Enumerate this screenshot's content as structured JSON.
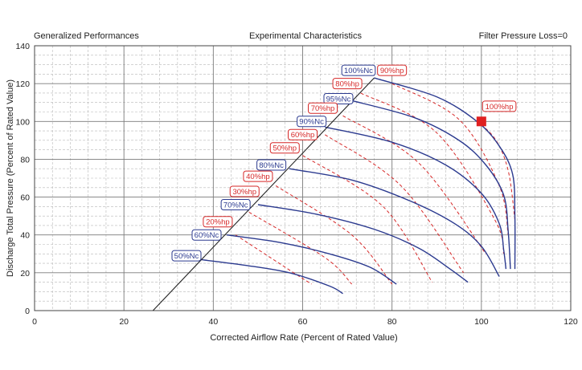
{
  "chart_data": {
    "type": "line",
    "header": {
      "left": "Generalized Performances",
      "center": "Experimental Characteristics",
      "right": "Filter Pressure Loss=0"
    },
    "xlabel": "Corrected Airflow Rate (Percent of Rated Value)",
    "ylabel": "Discharge Total Pressure (Percent of Rated Value)",
    "xlim": [
      0,
      120
    ],
    "ylim": [
      0,
      140
    ],
    "xticks": [
      0,
      20,
      40,
      60,
      80,
      100,
      120
    ],
    "yticks": [
      0,
      20,
      40,
      60,
      80,
      100,
      120,
      140
    ],
    "grid": true,
    "colors": {
      "speed": "#2b3a8f",
      "power": "#d62828",
      "surge": "#222222",
      "marker": "#e02020"
    },
    "surge_line": [
      [
        26.5,
        0
      ],
      [
        76,
        123
      ]
    ],
    "speed_series": [
      {
        "name": "50%Nc",
        "points": [
          [
            37,
            27
          ],
          [
            47,
            24
          ],
          [
            57,
            20
          ],
          [
            66,
            13
          ],
          [
            69,
            9
          ]
        ]
      },
      {
        "name": "60%Nc",
        "points": [
          [
            43,
            40
          ],
          [
            55,
            36
          ],
          [
            66,
            30
          ],
          [
            75,
            23
          ],
          [
            81,
            14
          ]
        ]
      },
      {
        "name": "70%Nc",
        "points": [
          [
            50,
            56
          ],
          [
            63,
            51
          ],
          [
            76,
            43
          ],
          [
            86,
            33
          ],
          [
            93,
            22
          ],
          [
            97,
            15
          ]
        ]
      },
      {
        "name": "80%Nc",
        "points": [
          [
            57,
            75
          ],
          [
            71,
            69
          ],
          [
            84,
            58
          ],
          [
            94,
            46
          ],
          [
            100,
            34
          ],
          [
            104,
            18
          ]
        ]
      },
      {
        "name": "90%Nc",
        "points": [
          [
            65,
            97
          ],
          [
            80,
            89
          ],
          [
            92,
            77
          ],
          [
            100,
            62
          ],
          [
            104,
            46
          ],
          [
            105,
            32
          ],
          [
            105.5,
            22
          ]
        ]
      },
      {
        "name": "95%Nc",
        "points": [
          [
            71,
            111
          ],
          [
            85,
            102
          ],
          [
            95,
            90
          ],
          [
            101,
            77
          ],
          [
            105,
            61
          ],
          [
            106,
            42
          ],
          [
            106.5,
            22
          ]
        ]
      },
      {
        "name": "100%Nc",
        "points": [
          [
            76,
            123
          ],
          [
            90,
            113
          ],
          [
            99,
            100
          ],
          [
            104,
            87
          ],
          [
            107,
            72
          ],
          [
            107.5,
            50
          ],
          [
            107.5,
            22
          ]
        ]
      }
    ],
    "power_series": [
      {
        "name": "20%hp",
        "points": [
          [
            45,
            40
          ],
          [
            58,
            20
          ],
          [
            62,
            14
          ]
        ]
      },
      {
        "name": "30%hp",
        "points": [
          [
            48,
            52
          ],
          [
            65,
            28
          ],
          [
            71,
            14
          ]
        ]
      },
      {
        "name": "40%hp",
        "points": [
          [
            54,
            66
          ],
          [
            71,
            40
          ],
          [
            80,
            14
          ]
        ]
      },
      {
        "name": "50%hp",
        "points": [
          [
            60,
            82
          ],
          [
            78,
            55
          ],
          [
            89,
            15
          ]
        ]
      },
      {
        "name": "60%hp",
        "points": [
          [
            65,
            93
          ],
          [
            82,
            66
          ],
          [
            96,
            20
          ]
        ]
      },
      {
        "name": "70%hp",
        "points": [
          [
            69,
            103
          ],
          [
            86,
            78
          ],
          [
            101,
            30
          ]
        ]
      },
      {
        "name": "80%hp",
        "points": [
          [
            73,
            115
          ],
          [
            90,
            94
          ],
          [
            103,
            48
          ],
          [
            105,
            30
          ]
        ]
      },
      {
        "name": "90%hp",
        "points": [
          [
            80,
            120
          ],
          [
            95,
            101
          ],
          [
            104,
            66
          ],
          [
            106,
            40
          ]
        ]
      },
      {
        "name": "100%hp",
        "points": [
          [
            98,
            102
          ],
          [
            103,
            91
          ],
          [
            106,
            74
          ],
          [
            107.5,
            48
          ]
        ]
      }
    ],
    "operating_point": {
      "x": 100,
      "y": 100
    }
  },
  "labels": [
    {
      "text": "50%Nc",
      "kind": "nc",
      "x": 34,
      "y": 29
    },
    {
      "text": "60%Nc",
      "kind": "nc",
      "x": 38.5,
      "y": 40
    },
    {
      "text": "70%Nc",
      "kind": "nc",
      "x": 45,
      "y": 56
    },
    {
      "text": "80%Nc",
      "kind": "nc",
      "x": 53,
      "y": 77
    },
    {
      "text": "90%Nc",
      "kind": "nc",
      "x": 62,
      "y": 100
    },
    {
      "text": "95%Nc",
      "kind": "nc",
      "x": 68,
      "y": 112
    },
    {
      "text": "100%Nc",
      "kind": "nc",
      "x": 72.5,
      "y": 127
    },
    {
      "text": "20%hp",
      "kind": "hp",
      "x": 41,
      "y": 47
    },
    {
      "text": "30%hp",
      "kind": "hp",
      "x": 47,
      "y": 63
    },
    {
      "text": "40%hp",
      "kind": "hp",
      "x": 50,
      "y": 71
    },
    {
      "text": "50%hp",
      "kind": "hp",
      "x": 56,
      "y": 86
    },
    {
      "text": "60%hp",
      "kind": "hp",
      "x": 60,
      "y": 93
    },
    {
      "text": "70%hp",
      "kind": "hp",
      "x": 64.5,
      "y": 107
    },
    {
      "text": "80%hp",
      "kind": "hp",
      "x": 70,
      "y": 120
    },
    {
      "text": "90%hp",
      "kind": "hp",
      "x": 80,
      "y": 127
    },
    {
      "text": "100%hp",
      "kind": "hp",
      "x": 104,
      "y": 108
    }
  ]
}
